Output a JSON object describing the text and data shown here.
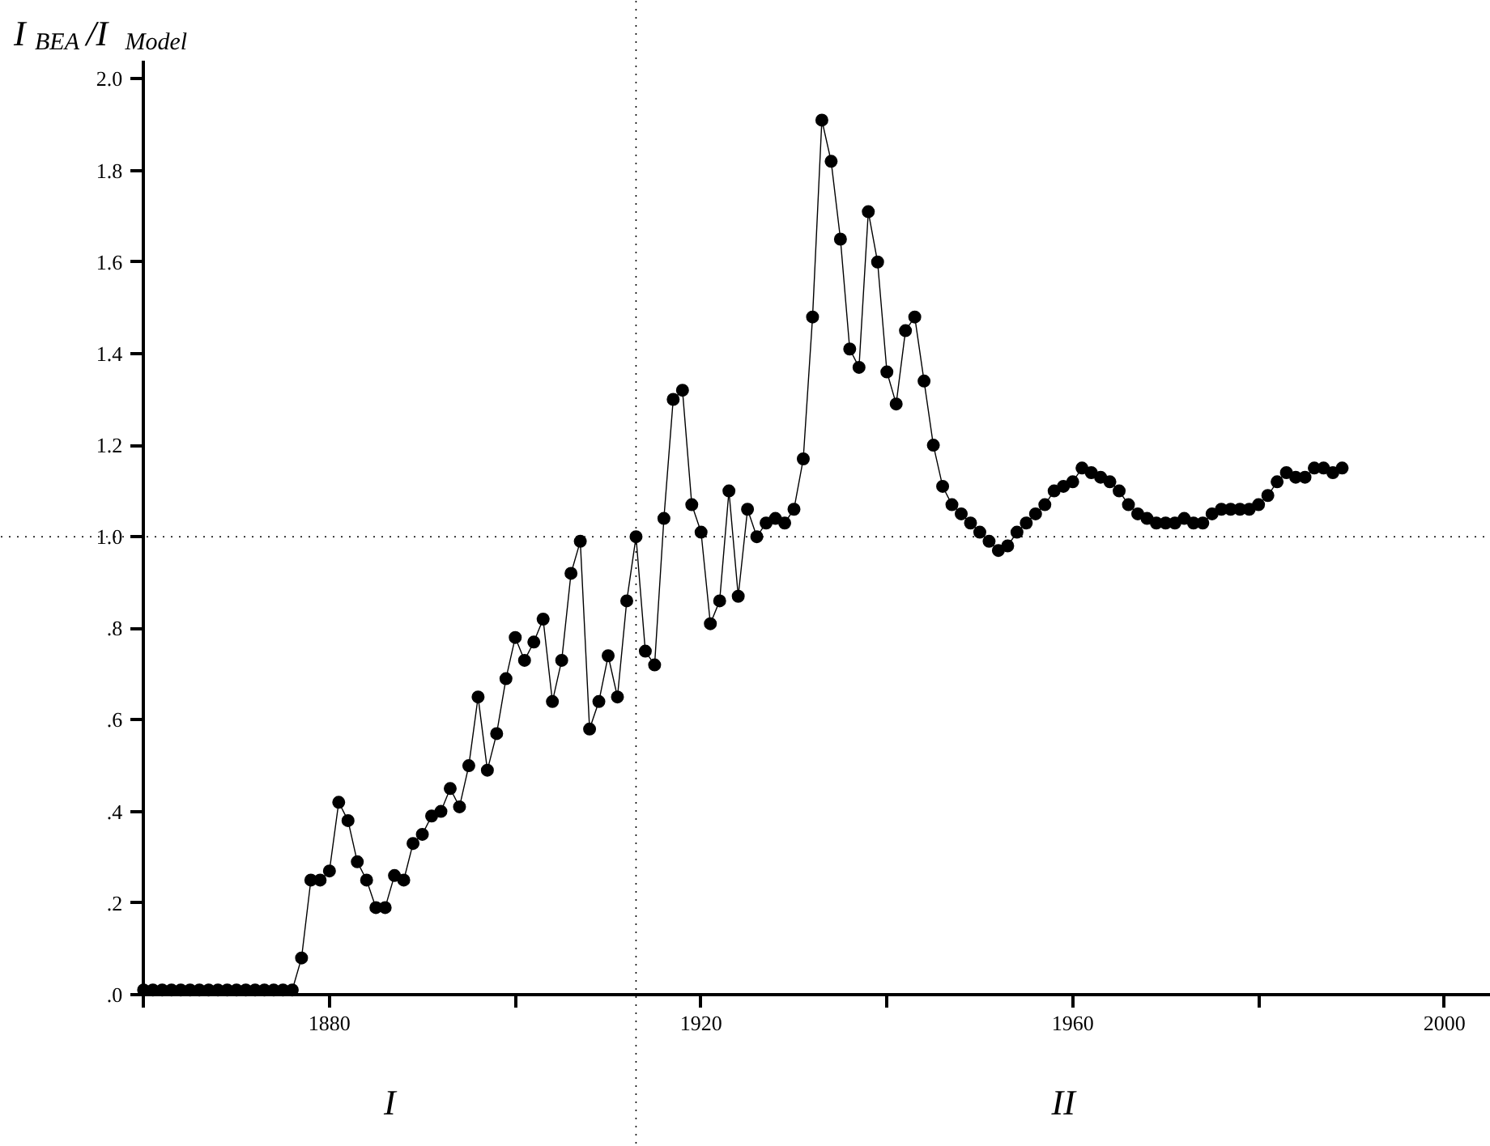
{
  "chart_data": {
    "type": "line",
    "ylabel": "I$_{BEA}$/I$_{Model}$",
    "x": [
      1860,
      1861,
      1862,
      1863,
      1864,
      1865,
      1866,
      1867,
      1868,
      1869,
      1870,
      1871,
      1872,
      1873,
      1874,
      1875,
      1876,
      1877,
      1878,
      1879,
      1880,
      1881,
      1882,
      1883,
      1884,
      1885,
      1886,
      1887,
      1888,
      1889,
      1890,
      1891,
      1892,
      1893,
      1894,
      1895,
      1896,
      1897,
      1898,
      1899,
      1900,
      1901,
      1902,
      1903,
      1904,
      1905,
      1906,
      1907,
      1908,
      1909,
      1910,
      1911,
      1912,
      1913,
      1914,
      1915,
      1916,
      1917,
      1918,
      1919,
      1920,
      1921,
      1922,
      1923,
      1924,
      1925,
      1926,
      1927,
      1928,
      1929,
      1930,
      1931,
      1932,
      1933,
      1934,
      1935,
      1936,
      1937,
      1938,
      1939,
      1940,
      1941,
      1942,
      1943,
      1944,
      1945,
      1946,
      1947,
      1948,
      1949,
      1950,
      1951,
      1952,
      1953,
      1954,
      1955,
      1956,
      1957,
      1958,
      1959,
      1960,
      1961,
      1962,
      1963,
      1964,
      1965,
      1966,
      1967,
      1968,
      1969,
      1970,
      1971,
      1972,
      1973,
      1974,
      1975,
      1976,
      1977,
      1978,
      1979,
      1980,
      1981,
      1982,
      1983,
      1984,
      1985,
      1986,
      1987,
      1988,
      1989
    ],
    "series": [
      {
        "color": "#000000",
        "values": [
          0.01,
          0.01,
          0.01,
          0.01,
          0.01,
          0.01,
          0.01,
          0.01,
          0.01,
          0.01,
          0.01,
          0.01,
          0.01,
          0.01,
          0.01,
          0.01,
          0.01,
          0.08,
          0.25,
          0.25,
          0.27,
          0.42,
          0.38,
          0.29,
          0.25,
          0.19,
          0.19,
          0.26,
          0.25,
          0.33,
          0.35,
          0.39,
          0.4,
          0.45,
          0.41,
          0.5,
          0.65,
          0.49,
          0.57,
          0.69,
          0.78,
          0.73,
          0.77,
          0.82,
          0.64,
          0.73,
          0.92,
          0.99,
          0.58,
          0.64,
          0.74,
          0.65,
          0.86,
          1.0,
          0.75,
          0.72,
          1.04,
          1.3,
          1.32,
          1.07,
          1.01,
          0.81,
          0.86,
          1.1,
          0.87,
          1.06,
          1.0,
          1.03,
          1.04,
          1.03,
          1.06,
          1.17,
          1.48,
          1.91,
          1.82,
          1.65,
          1.41,
          1.37,
          1.71,
          1.6,
          1.36,
          1.29,
          1.45,
          1.48,
          1.34,
          1.2,
          1.11,
          1.07,
          1.05,
          1.03,
          1.01,
          0.99,
          0.97,
          0.98,
          1.01,
          1.03,
          1.05,
          1.07,
          1.1,
          1.11,
          1.12,
          1.15,
          1.14,
          1.13,
          1.12,
          1.1,
          1.07,
          1.05,
          1.04,
          1.03,
          1.03,
          1.03,
          1.04,
          1.03,
          1.03,
          1.05,
          1.06,
          1.06,
          1.06,
          1.06,
          1.07,
          1.09,
          1.12,
          1.14,
          1.13,
          1.13,
          1.15,
          1.15,
          1.14,
          1.15
        ]
      }
    ],
    "marker": "circle",
    "line_style": "solid",
    "xlim": [
      1860,
      2005
    ],
    "ylim": [
      0,
      2.04
    ],
    "xticks": [
      {
        "value": 1860,
        "label": null
      },
      1880,
      {
        "value": 1900,
        "label": null
      },
      1920,
      {
        "value": 1940,
        "label": null
      },
      1960,
      {
        "value": 1980,
        "label": null
      },
      2000
    ],
    "yticks": [
      {
        "value": 0,
        "label": ".0"
      },
      {
        "value": 0.2,
        "label": ".2"
      },
      {
        "value": 0.4,
        "label": ".4"
      },
      {
        "value": 0.6,
        "label": ".6"
      },
      {
        "value": 0.8,
        "label": ".8"
      },
      {
        "value": 1.0,
        "label": "1.0"
      },
      {
        "value": 1.2,
        "label": "1.2"
      },
      {
        "value": 1.4,
        "label": "1.4"
      },
      {
        "value": 1.6,
        "label": "1.6"
      },
      {
        "value": 1.8,
        "label": "1.8"
      },
      {
        "value": 2.0,
        "label": "2.0"
      }
    ],
    "ref_lines": [
      {
        "axis": "y",
        "value": 1.0,
        "line_style": "dotted"
      },
      {
        "axis": "x",
        "value": 1913,
        "line_style": "dotted"
      }
    ],
    "annotations": [
      "I",
      "II"
    ],
    "grid": false
  }
}
